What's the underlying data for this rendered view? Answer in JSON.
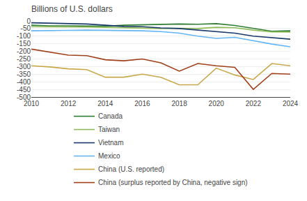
{
  "chart_data": {
    "type": "line",
    "title": "Billions of U.S. dollars",
    "x": [
      2010,
      2011,
      2012,
      2013,
      2014,
      2015,
      2016,
      2017,
      2018,
      2019,
      2020,
      2021,
      2022,
      2023,
      2024
    ],
    "series": [
      {
        "name": "Canada",
        "color": "#2e7d32",
        "values": [
          -28,
          -32,
          -32,
          -32,
          -35,
          -28,
          -25,
          -25,
          -20,
          -22,
          -18,
          -30,
          -50,
          -68,
          -65
        ]
      },
      {
        "name": "Taiwan",
        "color": "#8fbc5a",
        "values": [
          -38,
          -38,
          -40,
          -40,
          -42,
          -45,
          -48,
          -50,
          -48,
          -50,
          -42,
          -45,
          -60,
          -72,
          -73
        ]
      },
      {
        "name": "Vietnam",
        "color": "#1a3a6b",
        "values": [
          -12,
          -15,
          -17,
          -20,
          -28,
          -36,
          -38,
          -46,
          -50,
          -60,
          -70,
          -80,
          -100,
          -110,
          -120
        ]
      },
      {
        "name": "Mexico",
        "color": "#64b5f6",
        "values": [
          -65,
          -65,
          -62,
          -60,
          -62,
          -62,
          -65,
          -70,
          -80,
          -100,
          -115,
          -108,
          -130,
          -152,
          -170
        ]
      },
      {
        "name": "China (U.S. reported)",
        "color": "#c8a84b",
        "values": [
          -295,
          -302,
          -315,
          -320,
          -370,
          -370,
          -350,
          -370,
          -420,
          -420,
          -310,
          -355,
          -385,
          -280,
          -295
        ]
      },
      {
        "name": "China (surplus reported by China, negative sign)",
        "color": "#a0401a",
        "values": [
          -185,
          -205,
          -225,
          -228,
          -255,
          -262,
          -250,
          -275,
          -330,
          -280,
          -295,
          -305,
          -450,
          -345,
          -350
        ]
      }
    ],
    "xlim": [
      2010,
      2024
    ],
    "xticks": [
      2010,
      2012,
      2014,
      2016,
      2018,
      2020,
      2022,
      2024
    ],
    "ylim": [
      -500,
      0
    ],
    "yticks": [
      0,
      -50,
      -100,
      -150,
      -200,
      -250,
      -300,
      -350,
      -400,
      -450,
      -500
    ],
    "grid": "y",
    "legend": "bottom"
  }
}
